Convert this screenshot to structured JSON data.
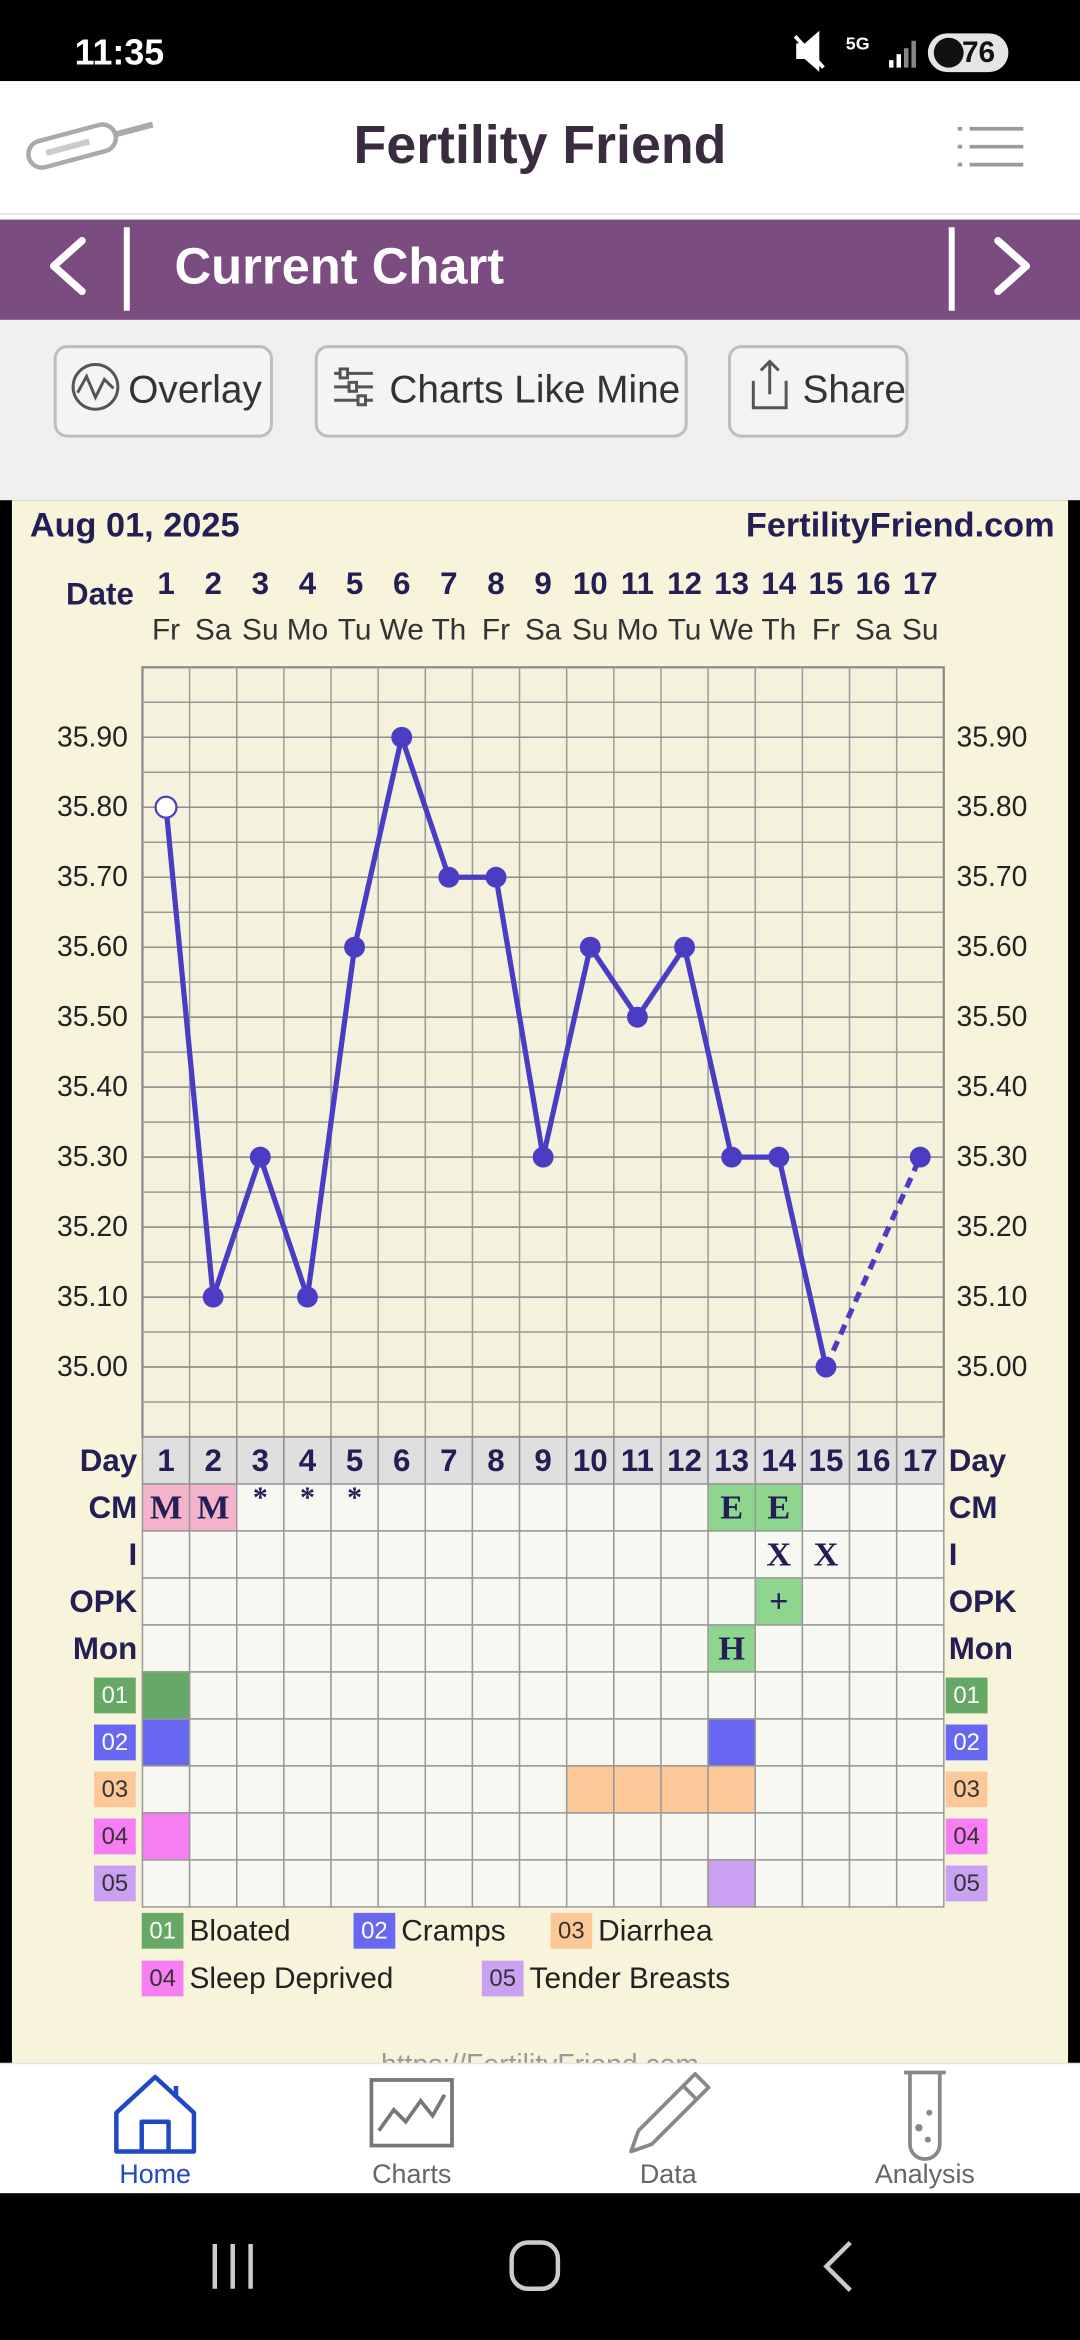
{
  "status_bar": {
    "time": "11:35",
    "network": "5G",
    "battery": "76"
  },
  "header": {
    "title": "Fertility Friend"
  },
  "nav": {
    "title": "Current Chart"
  },
  "actions": [
    "Overlay",
    "Charts Like Mine",
    "Share"
  ],
  "chart": {
    "date": "Aug 01, 2025",
    "site": "FertilityFriend.com",
    "date_label": "Date",
    "days": [
      1,
      2,
      3,
      4,
      5,
      6,
      7,
      8,
      9,
      10,
      11,
      12,
      13,
      14,
      15,
      16,
      17
    ],
    "weekdays": [
      "Fr",
      "Sa",
      "Su",
      "Mo",
      "Tu",
      "We",
      "Th",
      "Fr",
      "Sa",
      "Su",
      "Mo",
      "Tu",
      "We",
      "Th",
      "Fr",
      "Sa",
      "Su"
    ],
    "ylim": [
      34.9,
      36.0
    ],
    "yticks": [
      {
        "value": 35.0,
        "label": "35.00"
      },
      {
        "value": 35.1,
        "label": "35.10"
      },
      {
        "value": 35.2,
        "label": "35.20"
      },
      {
        "value": 35.3,
        "label": "35.30"
      },
      {
        "value": 35.4,
        "label": "35.40"
      },
      {
        "value": 35.5,
        "label": "35.50"
      },
      {
        "value": 35.6,
        "label": "35.60"
      },
      {
        "value": 35.7,
        "label": "35.70"
      },
      {
        "value": 35.8,
        "label": "35.80"
      },
      {
        "value": 35.9,
        "label": "35.90"
      }
    ],
    "temperatures": [
      35.8,
      35.1,
      35.3,
      35.1,
      35.6,
      35.9,
      35.7,
      35.7,
      35.3,
      35.6,
      35.5,
      35.6,
      35.3,
      35.3,
      35.0,
      null,
      35.3
    ],
    "open_days": [
      1
    ],
    "line_color": "#4b3cc4",
    "day_label": "Day",
    "rows": [
      {
        "label": "CM",
        "cells": [
          "M",
          "M",
          "*",
          "*",
          "*",
          null,
          null,
          null,
          null,
          null,
          null,
          null,
          "E",
          "E",
          null,
          null,
          null
        ],
        "colors": [
          "#f2b3cb",
          "#f2b3cb",
          null,
          null,
          null,
          null,
          null,
          null,
          null,
          null,
          null,
          null,
          "#8ed68e",
          "#8ed68e",
          null,
          null,
          null
        ]
      },
      {
        "label": "I",
        "cells": [
          null,
          null,
          null,
          null,
          null,
          null,
          null,
          null,
          null,
          null,
          null,
          null,
          null,
          "X",
          "X",
          null,
          null
        ]
      },
      {
        "label": "OPK",
        "cells": [
          null,
          null,
          null,
          null,
          null,
          null,
          null,
          null,
          null,
          null,
          null,
          null,
          null,
          "+",
          null,
          null,
          null
        ],
        "colors": [
          null,
          null,
          null,
          null,
          null,
          null,
          null,
          null,
          null,
          null,
          null,
          null,
          null,
          "#8ed68e",
          null,
          null,
          null
        ]
      },
      {
        "label": "Mon",
        "cells": [
          null,
          null,
          null,
          null,
          null,
          null,
          null,
          null,
          null,
          null,
          null,
          null,
          "H",
          null,
          null,
          null,
          null
        ],
        "colors": [
          null,
          null,
          null,
          null,
          null,
          null,
          null,
          null,
          null,
          null,
          null,
          null,
          "#8ed68e",
          null,
          null,
          null,
          null
        ]
      }
    ],
    "symptoms": [
      {
        "code": "01",
        "name": "Bloated",
        "color": "#66a866",
        "days": [
          1
        ]
      },
      {
        "code": "02",
        "name": "Cramps",
        "color": "#6767f2",
        "days": [
          1,
          13
        ]
      },
      {
        "code": "03",
        "name": "Diarrhea",
        "color": "#fcc898",
        "days": [
          10,
          11,
          12,
          13
        ]
      },
      {
        "code": "04",
        "name": "Sleep Deprived",
        "color": "#f77ef2",
        "days": [
          1
        ]
      },
      {
        "code": "05",
        "name": "Tender Breasts",
        "color": "#c9a0f2",
        "days": [
          13
        ]
      }
    ],
    "footer": "https://FertilityFriend.com"
  },
  "tabs": [
    "Home",
    "Charts",
    "Data",
    "Analysis"
  ]
}
